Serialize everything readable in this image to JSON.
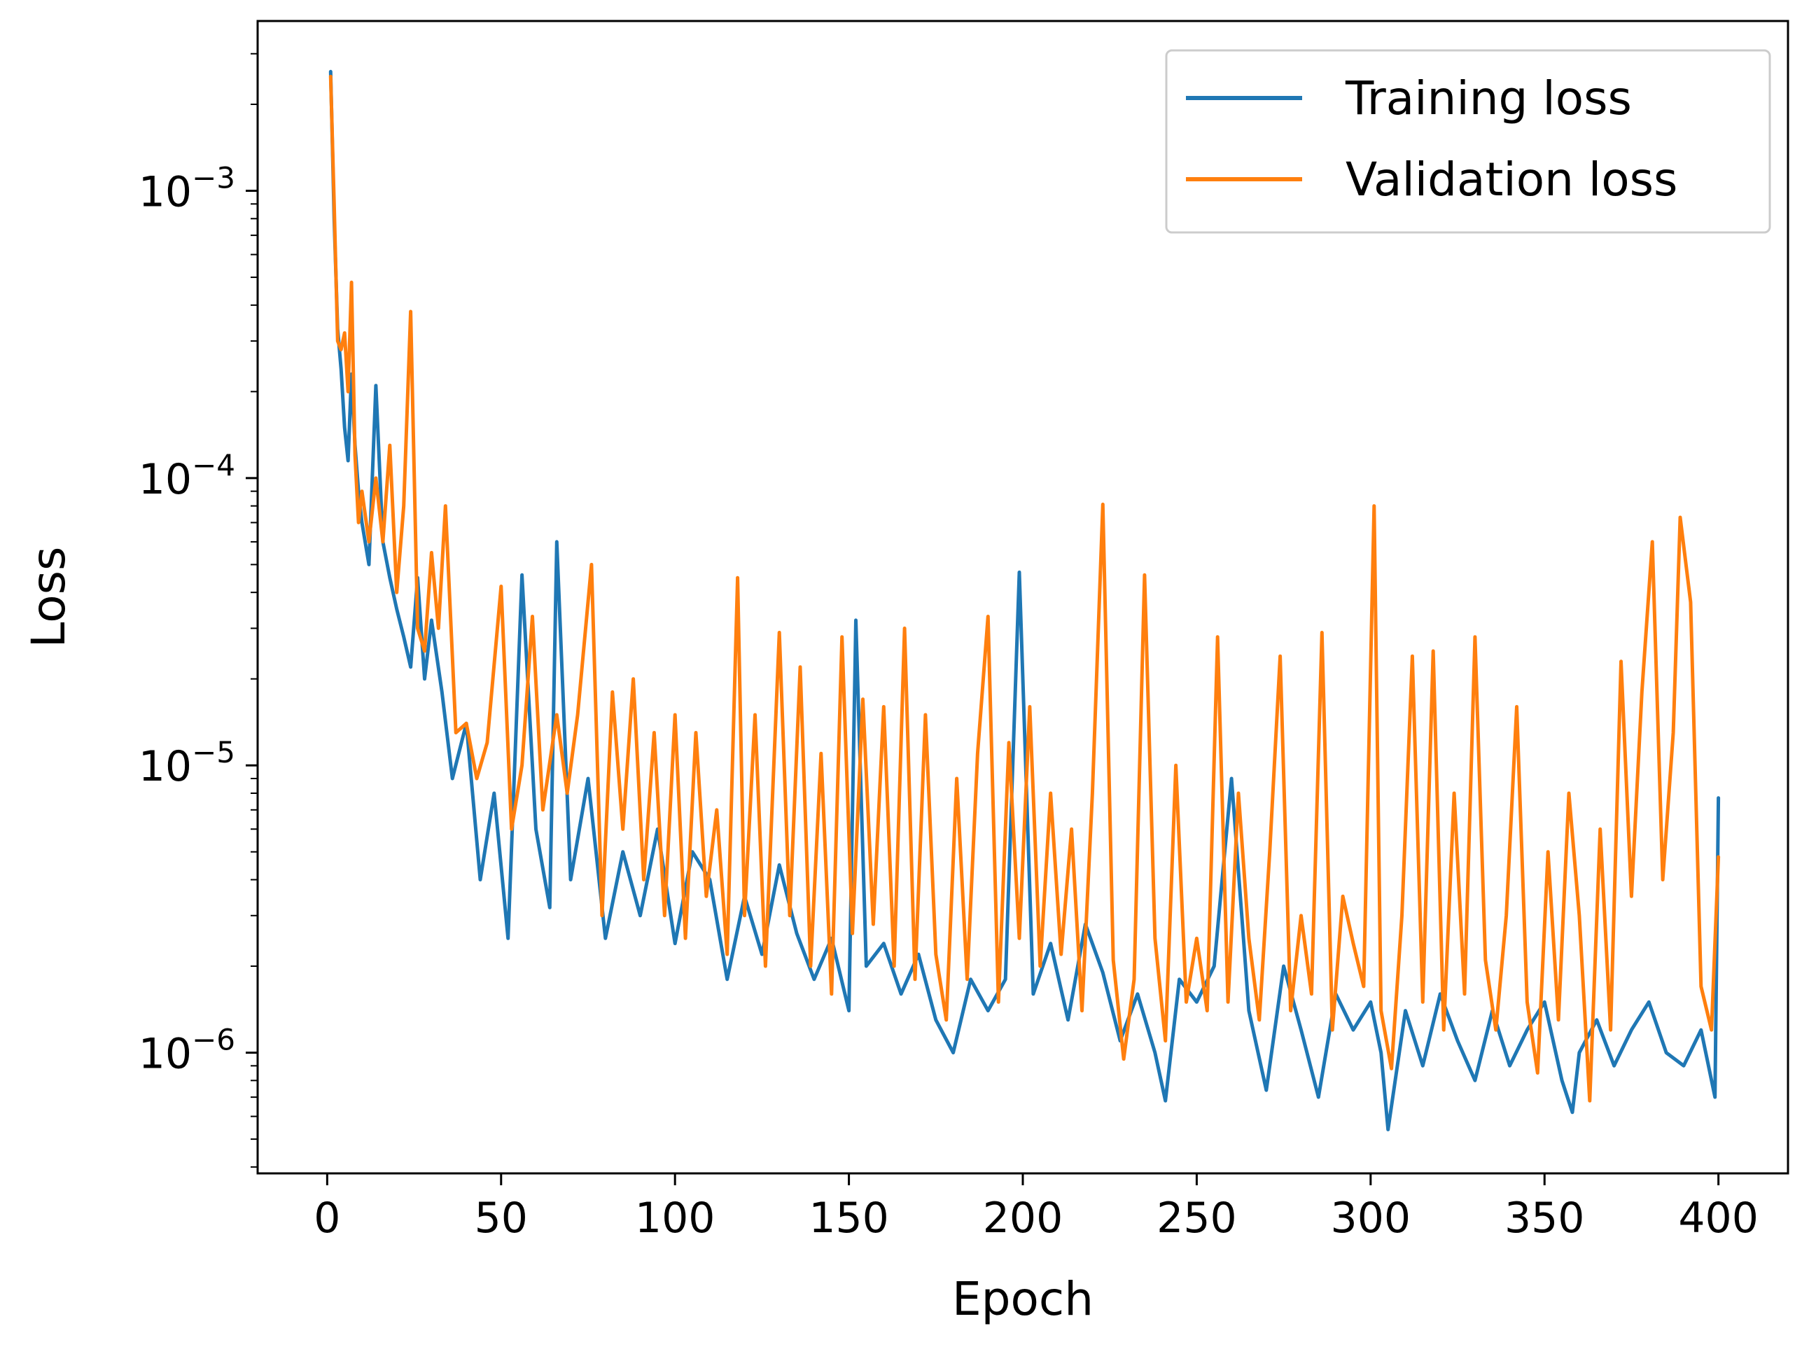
{
  "chart_data": {
    "type": "line",
    "title": "",
    "xlabel": "Epoch",
    "ylabel": "Loss",
    "xscale": "linear",
    "yscale": "log",
    "xlim": [
      -20,
      420
    ],
    "ylim": [
      3.8e-07,
      0.0039
    ],
    "xticks": [
      0,
      50,
      100,
      150,
      200,
      250,
      300,
      350,
      400
    ],
    "xtick_labels": [
      "0",
      "50",
      "100",
      "150",
      "200",
      "250",
      "300",
      "350",
      "400"
    ],
    "yticks": [
      1e-06,
      1e-05,
      0.0001,
      0.001
    ],
    "ytick_labels": [
      {
        "base": "10",
        "exp": "−6"
      },
      {
        "base": "10",
        "exp": "−5"
      },
      {
        "base": "10",
        "exp": "−4"
      },
      {
        "base": "10",
        "exp": "−3"
      }
    ],
    "grid": false,
    "legend": {
      "position": "top-right",
      "entries": [
        {
          "label": "Training loss",
          "color": "#1f77b4"
        },
        {
          "label": "Validation loss",
          "color": "#ff7f0e"
        }
      ]
    },
    "series": [
      {
        "name": "Training loss",
        "color": "#1f77b4",
        "x": [
          1,
          2,
          3,
          4,
          5,
          6,
          7,
          8,
          9,
          10,
          12,
          14,
          16,
          18,
          20,
          22,
          24,
          26,
          28,
          30,
          33,
          36,
          40,
          44,
          48,
          52,
          56,
          60,
          64,
          66,
          70,
          75,
          80,
          85,
          90,
          95,
          100,
          105,
          110,
          115,
          120,
          125,
          130,
          135,
          140,
          145,
          150,
          152,
          155,
          160,
          165,
          170,
          175,
          180,
          185,
          190,
          195,
          199,
          203,
          208,
          213,
          218,
          223,
          228,
          233,
          238,
          241,
          245,
          250,
          255,
          260,
          265,
          270,
          275,
          280,
          285,
          290,
          295,
          300,
          303,
          305,
          310,
          315,
          320,
          325,
          330,
          335,
          340,
          345,
          350,
          355,
          358,
          360,
          365,
          370,
          375,
          380,
          385,
          390,
          395,
          399,
          400
        ],
        "y": [
          0.0026,
          0.0008,
          0.00033,
          0.00024,
          0.00015,
          0.000115,
          0.00023,
          0.00013,
          9e-05,
          7e-05,
          5e-05,
          0.00021,
          6e-05,
          4.5e-05,
          3.5e-05,
          2.8e-05,
          2.2e-05,
          4.5e-05,
          2e-05,
          3.2e-05,
          1.8e-05,
          9e-06,
          1.4e-05,
          4e-06,
          8e-06,
          2.5e-06,
          4.6e-05,
          6e-06,
          3.2e-06,
          6e-05,
          4e-06,
          9e-06,
          2.5e-06,
          5e-06,
          3e-06,
          6e-06,
          2.4e-06,
          5e-06,
          4e-06,
          1.8e-06,
          3.5e-06,
          2.2e-06,
          4.5e-06,
          2.6e-06,
          1.8e-06,
          2.5e-06,
          1.4e-06,
          3.2e-05,
          2e-06,
          2.4e-06,
          1.6e-06,
          2.2e-06,
          1.3e-06,
          1e-06,
          1.8e-06,
          1.4e-06,
          1.8e-06,
          4.7e-05,
          1.6e-06,
          2.4e-06,
          1.3e-06,
          2.8e-06,
          1.9e-06,
          1.1e-06,
          1.6e-06,
          1e-06,
          6.8e-07,
          1.8e-06,
          1.5e-06,
          2e-06,
          9e-06,
          1.4e-06,
          7.4e-07,
          2e-06,
          1.2e-06,
          7e-07,
          1.6e-06,
          1.2e-06,
          1.5e-06,
          1e-06,
          5.4e-07,
          1.4e-06,
          9e-07,
          1.6e-06,
          1.1e-06,
          8e-07,
          1.4e-06,
          9e-07,
          1.2e-06,
          1.5e-06,
          8e-07,
          6.2e-07,
          1e-06,
          1.3e-06,
          9e-07,
          1.2e-06,
          1.5e-06,
          1e-06,
          9e-07,
          1.2e-06,
          7e-07,
          7.7e-06
        ]
      },
      {
        "name": "Validation loss",
        "color": "#ff7f0e",
        "x": [
          1,
          2,
          3,
          4,
          5,
          6,
          7,
          8,
          9,
          10,
          12,
          14,
          16,
          18,
          20,
          22,
          24,
          26,
          28,
          30,
          32,
          34,
          37,
          40,
          43,
          46,
          50,
          53,
          56,
          59,
          62,
          66,
          69,
          72,
          76,
          79,
          82,
          85,
          88,
          91,
          94,
          97,
          100,
          103,
          106,
          109,
          112,
          115,
          118,
          120,
          123,
          126,
          130,
          133,
          136,
          139,
          142,
          145,
          148,
          151,
          154,
          157,
          160,
          163,
          166,
          169,
          172,
          175,
          178,
          181,
          184,
          187,
          190,
          193,
          196,
          199,
          202,
          205,
          208,
          211,
          214,
          217,
          220,
          223,
          226,
          229,
          232,
          235,
          238,
          241,
          244,
          247,
          250,
          253,
          256,
          259,
          262,
          265,
          268,
          271,
          274,
          277,
          280,
          283,
          286,
          289,
          292,
          295,
          298,
          301,
          303,
          306,
          309,
          312,
          315,
          318,
          321,
          324,
          327,
          330,
          333,
          336,
          339,
          342,
          345,
          348,
          351,
          354,
          357,
          360,
          363,
          366,
          369,
          372,
          375,
          378,
          381,
          384,
          387,
          389,
          392,
          395,
          398,
          400
        ],
        "y": [
          0.0025,
          0.0009,
          0.0003,
          0.00028,
          0.00032,
          0.0002,
          0.00048,
          0.00012,
          7e-05,
          9e-05,
          6e-05,
          0.0001,
          6e-05,
          0.00013,
          4e-05,
          8e-05,
          0.00038,
          3e-05,
          2.5e-05,
          5.5e-05,
          3e-05,
          8e-05,
          1.3e-05,
          1.4e-05,
          9e-06,
          1.2e-05,
          4.2e-05,
          6e-06,
          1e-05,
          3.3e-05,
          7e-06,
          1.5e-05,
          8e-06,
          1.5e-05,
          5e-05,
          3e-06,
          1.8e-05,
          6e-06,
          2e-05,
          4e-06,
          1.3e-05,
          3e-06,
          1.5e-05,
          2.5e-06,
          1.3e-05,
          3.5e-06,
          7e-06,
          2.2e-06,
          4.5e-05,
          3e-06,
          1.5e-05,
          2e-06,
          2.9e-05,
          3e-06,
          2.2e-05,
          2e-06,
          1.1e-05,
          1.6e-06,
          2.8e-05,
          2.6e-06,
          1.7e-05,
          2.8e-06,
          1.6e-05,
          2e-06,
          3e-05,
          1.8e-06,
          1.5e-05,
          2.2e-06,
          1.3e-06,
          9e-06,
          1.8e-06,
          1.1e-05,
          3.3e-05,
          1.5e-06,
          1.2e-05,
          2.5e-06,
          1.6e-05,
          2e-06,
          8e-06,
          2.2e-06,
          6e-06,
          1.4e-06,
          8e-06,
          8.1e-05,
          2.1e-06,
          9.5e-07,
          1.8e-06,
          4.6e-05,
          2.5e-06,
          1.1e-06,
          1e-05,
          1.5e-06,
          2.5e-06,
          1.4e-06,
          2.8e-05,
          1.5e-06,
          8e-06,
          2.5e-06,
          1.3e-06,
          5e-06,
          2.4e-05,
          1.4e-06,
          3e-06,
          1.6e-06,
          2.9e-05,
          1.2e-06,
          3.5e-06,
          2.4e-06,
          1.7e-06,
          8e-05,
          1.4e-06,
          8.8e-07,
          3e-06,
          2.4e-05,
          1.5e-06,
          2.5e-05,
          1.2e-06,
          8e-06,
          1.6e-06,
          2.8e-05,
          2.1e-06,
          1.2e-06,
          3e-06,
          1.6e-05,
          1.5e-06,
          8.5e-07,
          5e-06,
          1.3e-06,
          8e-06,
          3e-06,
          6.8e-07,
          6e-06,
          1.2e-06,
          2.3e-05,
          3.5e-06,
          1.8e-05,
          6e-05,
          4e-06,
          1.3e-05,
          7.3e-05,
          3.7e-05,
          1.7e-06,
          1.2e-06,
          4.8e-06
        ]
      }
    ]
  }
}
